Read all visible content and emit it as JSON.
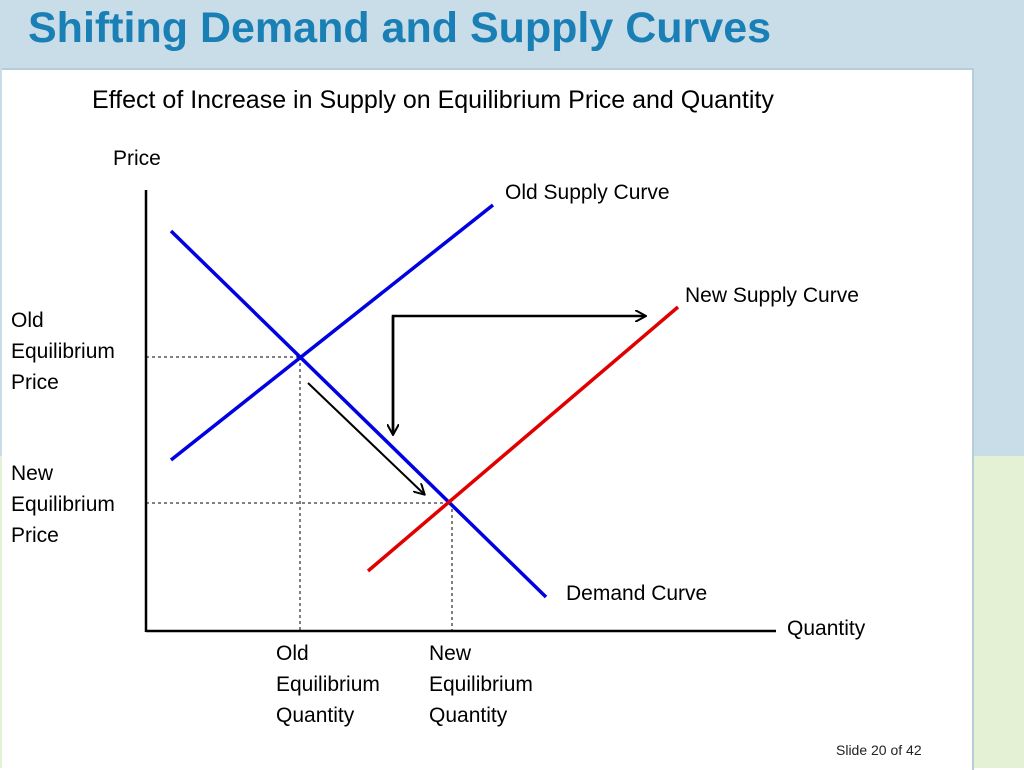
{
  "slide": {
    "title": "Shifting Demand and Supply Curves",
    "subtitle": "Effect of Increase in Supply on Equilibrium Price and Quantity",
    "footer": "Slide 20 of 42"
  },
  "colors": {
    "title": "#1a7fb5",
    "old_supply": "#0000e0",
    "demand": "#0000e0",
    "new_supply": "#e00000",
    "background_top": "#c9dde9",
    "background_bottom": "#e4f1d4"
  },
  "diagram": {
    "axis_y_label": "Price",
    "axis_x_label": "Quantity",
    "old_supply_label": "Old Supply Curve",
    "new_supply_label": "New Supply Curve",
    "demand_label": "Demand Curve",
    "old_price": {
      "l1": "Old",
      "l2": "Equilibrium",
      "l3": "Price"
    },
    "new_price": {
      "l1": "New",
      "l2": "Equilibrium",
      "l3": "Price"
    },
    "old_quantity": {
      "l1": "Old",
      "l2": "Equilibrium",
      "l3": "Quantity"
    },
    "new_quantity": {
      "l1": "New",
      "l2": "Equilibrium",
      "l3": "Quantity"
    }
  }
}
